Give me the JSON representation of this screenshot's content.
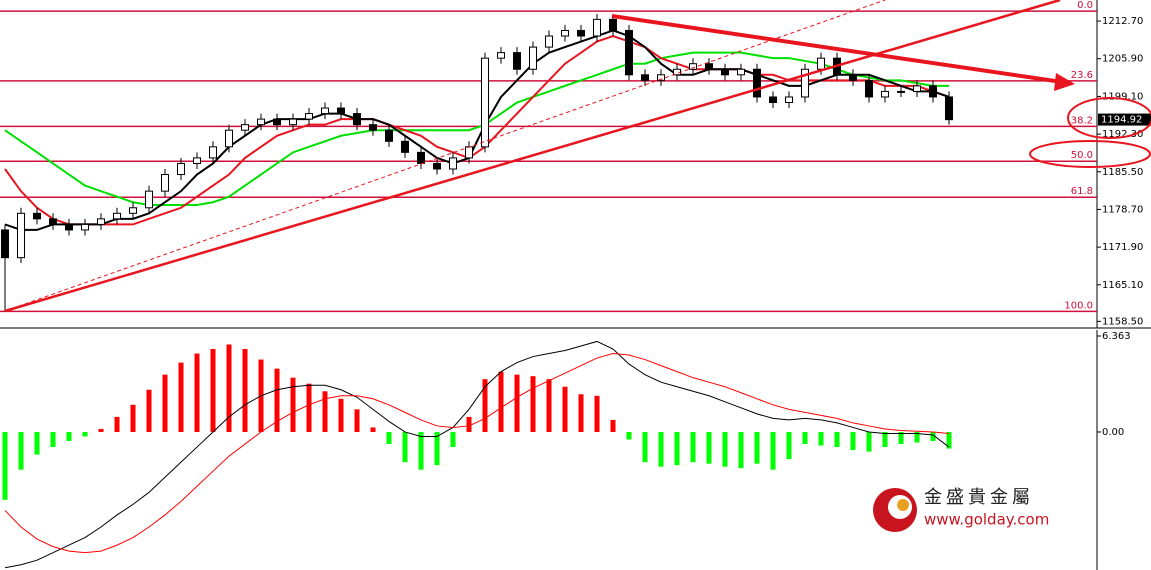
{
  "chart_data": [
    {
      "type": "candlestick",
      "open": [
        1175,
        1170,
        1178,
        1177,
        1176,
        1175,
        1176,
        1177,
        1178,
        1179,
        1182,
        1185,
        1187,
        1188,
        1190,
        1193,
        1194,
        1195,
        1194,
        1195,
        1196,
        1197,
        1196,
        1194,
        1193,
        1191,
        1189,
        1187,
        1186,
        1188,
        1190,
        1206,
        1207,
        1204,
        1208,
        1210,
        1211,
        1210,
        1213,
        1211,
        1203,
        1202,
        1203,
        1204,
        1205,
        1204,
        1203,
        1204,
        1199,
        1198,
        1199,
        1204,
        1206,
        1203,
        1202,
        1199,
        1200,
        1200,
        1201,
        1199
      ],
      "high": [
        1176,
        1179,
        1179,
        1178,
        1177,
        1177,
        1178,
        1179,
        1180,
        1183,
        1186,
        1188,
        1189,
        1191,
        1194,
        1195,
        1196,
        1196,
        1196,
        1197,
        1198,
        1198,
        1197,
        1195,
        1194,
        1192,
        1190,
        1188,
        1189,
        1191,
        1207,
        1208,
        1208,
        1209,
        1211,
        1212,
        1212,
        1214,
        1214,
        1212,
        1204,
        1204,
        1205,
        1206,
        1206,
        1205,
        1205,
        1205,
        1200,
        1200,
        1205,
        1207,
        1207,
        1204,
        1203,
        1201,
        1201,
        1202,
        1202,
        1200
      ],
      "low": [
        1160.3,
        1169,
        1176,
        1175,
        1174,
        1174,
        1175,
        1176,
        1177,
        1178,
        1181,
        1184,
        1186,
        1187,
        1189,
        1192,
        1193,
        1193,
        1193,
        1194,
        1195,
        1195,
        1193,
        1192,
        1190,
        1188,
        1186,
        1185,
        1185,
        1187,
        1189,
        1205,
        1203,
        1203,
        1207,
        1209,
        1209,
        1209,
        1210,
        1202,
        1201,
        1201,
        1202,
        1203,
        1203,
        1202,
        1202,
        1198,
        1197,
        1197,
        1198,
        1203,
        1202,
        1201,
        1198,
        1198,
        1199,
        1199,
        1198,
        1194
      ],
      "close": [
        1170,
        1178,
        1177,
        1176,
        1175,
        1176,
        1177,
        1178,
        1179,
        1182,
        1185,
        1187,
        1188,
        1190,
        1193,
        1194,
        1195,
        1194,
        1195,
        1196,
        1197,
        1196,
        1194,
        1193,
        1191,
        1189,
        1187,
        1186,
        1188,
        1190,
        1206,
        1207,
        1204,
        1208,
        1210,
        1211,
        1210,
        1213,
        1211,
        1203,
        1202,
        1203,
        1204,
        1205,
        1204,
        1203,
        1204,
        1199,
        1198,
        1199,
        1204,
        1206,
        1203,
        1202,
        1199,
        1200,
        1200,
        1201,
        1199,
        1194.9
      ],
      "moving_averages": [
        {
          "color": "#00e000",
          "values": [
            1193,
            1191,
            1189,
            1187,
            1185,
            1183,
            1182,
            1181,
            1180,
            1179.5,
            1179.5,
            1179.5,
            1179.5,
            1180,
            1181,
            1183,
            1185,
            1187,
            1189,
            1190,
            1191,
            1192,
            1192.5,
            1193,
            1193,
            1193,
            1193,
            1193,
            1193,
            1193,
            1194,
            1196,
            1198,
            1199,
            1200,
            1201,
            1202,
            1203,
            1204,
            1205,
            1205,
            1206,
            1206.5,
            1207,
            1207,
            1207,
            1207,
            1206.5,
            1206,
            1206,
            1205.5,
            1205,
            1204,
            1203,
            1202.5,
            1202,
            1202,
            1201.5,
            1201,
            1201
          ]
        },
        {
          "color": "#e8141e",
          "values": [
            1186,
            1182,
            1179,
            1177,
            1176,
            1176,
            1176,
            1176,
            1176,
            1177,
            1178,
            1179,
            1181,
            1183,
            1185,
            1188,
            1190,
            1192,
            1193,
            1194,
            1194,
            1195,
            1195,
            1195,
            1194,
            1193,
            1192,
            1190,
            1189,
            1188,
            1190,
            1193,
            1196,
            1199,
            1202,
            1205,
            1207,
            1209,
            1210,
            1209,
            1208,
            1206,
            1205,
            1204,
            1204,
            1204,
            1204,
            1203,
            1203,
            1202,
            1202,
            1202,
            1202,
            1202,
            1202,
            1201,
            1201,
            1201,
            1200,
            1199
          ]
        },
        {
          "color": "#000000",
          "values": [
            1176,
            1175,
            1175,
            1176,
            1176,
            1176,
            1176,
            1177,
            1177,
            1178,
            1180,
            1182,
            1185,
            1187,
            1190,
            1192,
            1194,
            1195,
            1195,
            1195,
            1196,
            1196,
            1195,
            1195,
            1194,
            1192,
            1190,
            1188,
            1187,
            1188,
            1194,
            1199,
            1202,
            1205,
            1207,
            1208,
            1209,
            1210,
            1211,
            1210,
            1208,
            1205,
            1203,
            1203,
            1204,
            1204,
            1204,
            1203,
            1202,
            1201,
            1201,
            1202,
            1203,
            1203,
            1203,
            1202,
            1201,
            1200,
            1200,
            1199
          ]
        }
      ],
      "fib_levels": [
        {
          "value": 1214.5,
          "label": "0.0"
        },
        {
          "value": 1201.9,
          "label": "23.6"
        },
        {
          "value": 1193.7,
          "label": "38.2"
        },
        {
          "value": 1187.4,
          "label": "50.0"
        },
        {
          "value": 1180.9,
          "label": "61.8"
        },
        {
          "value": 1160.3,
          "label": "100.0"
        }
      ],
      "fib_color": "#d0103a",
      "current_price": 1194.92,
      "ylim": [
        1157.3,
        1216.5
      ],
      "yticks": [
        {
          "value": 1212.7,
          "label": "1212.70"
        },
        {
          "value": 1205.9,
          "label": "1205.90"
        },
        {
          "value": 1199.1,
          "label": "1199.10"
        },
        {
          "value": 1192.3,
          "label": "1192.30"
        },
        {
          "value": 1185.5,
          "label": "1185.50"
        },
        {
          "value": 1178.7,
          "label": "1178.70"
        },
        {
          "value": 1171.9,
          "label": "1171.90"
        },
        {
          "value": 1165.1,
          "label": "1165.10"
        },
        {
          "value": 1158.5,
          "label": "1158.50"
        }
      ]
    },
    {
      "type": "macd",
      "histogram": [
        -4.5,
        -2.5,
        -1.5,
        -1,
        -0.6,
        -0.3,
        0.2,
        1,
        1.8,
        2.8,
        3.8,
        4.6,
        5.2,
        5.5,
        5.8,
        5.5,
        4.8,
        4.2,
        3.6,
        3.2,
        2.7,
        2.2,
        1.5,
        0.3,
        -0.8,
        -2,
        -2.5,
        -2.2,
        -1,
        1,
        3.5,
        4,
        3.8,
        3.7,
        3.5,
        3,
        2.5,
        2.4,
        0.8,
        -0.5,
        -2,
        -2.3,
        -2.2,
        -2,
        -2.1,
        -2.3,
        -2.4,
        -2.1,
        -2.5,
        -1.8,
        -0.8,
        -0.9,
        -1,
        -1.2,
        -1.3,
        -1,
        -0.8,
        -0.7,
        -0.6,
        -1.1
      ],
      "up_color": "#ff0000",
      "down_color": "#00ff00",
      "series": [
        {
          "color": "#000000",
          "values": [
            -9,
            -8.8,
            -8.5,
            -8,
            -7.5,
            -7,
            -6.3,
            -5.5,
            -4.8,
            -4,
            -3,
            -2,
            -1,
            0,
            1,
            1.8,
            2.4,
            2.8,
            3,
            3.1,
            3.1,
            2.8,
            2.3,
            1.5,
            0.7,
            0,
            -0.3,
            -0.3,
            0.3,
            1.5,
            3,
            4,
            4.6,
            5,
            5.2,
            5.4,
            5.7,
            6,
            5.5,
            4.5,
            3.8,
            3.3,
            3,
            2.7,
            2.4,
            2,
            1.6,
            1.2,
            0.9,
            0.8,
            0.9,
            0.8,
            0.6,
            0.3,
            0,
            -0.1,
            -0.1,
            -0.1,
            -0.2,
            -1
          ]
        },
        {
          "color": "#ff0000",
          "values": [
            -5.2,
            -6.3,
            -7.1,
            -7.6,
            -7.9,
            -8,
            -7.9,
            -7.5,
            -7,
            -6.3,
            -5.5,
            -4.6,
            -3.6,
            -2.6,
            -1.6,
            -0.8,
            0,
            0.7,
            1.3,
            1.8,
            2.2,
            2.4,
            2.4,
            2.2,
            1.8,
            1.3,
            0.8,
            0.4,
            0.3,
            0.4,
            0.9,
            1.6,
            2.3,
            2.9,
            3.4,
            3.9,
            4.4,
            4.9,
            5.2,
            5.1,
            4.8,
            4.4,
            4,
            3.6,
            3.3,
            3,
            2.6,
            2.2,
            1.8,
            1.5,
            1.3,
            1.1,
            0.9,
            0.6,
            0.4,
            0.2,
            0.1,
            0.05,
            0,
            -0.1
          ]
        }
      ],
      "ylim": [
        -9.15,
        6.76
      ],
      "yticks": [
        6.363,
        {
          "value": 0,
          "label": "0.00"
        }
      ]
    }
  ],
  "watermark": {
    "name": "金盛貴金屬",
    "url": "www.golday.com"
  }
}
